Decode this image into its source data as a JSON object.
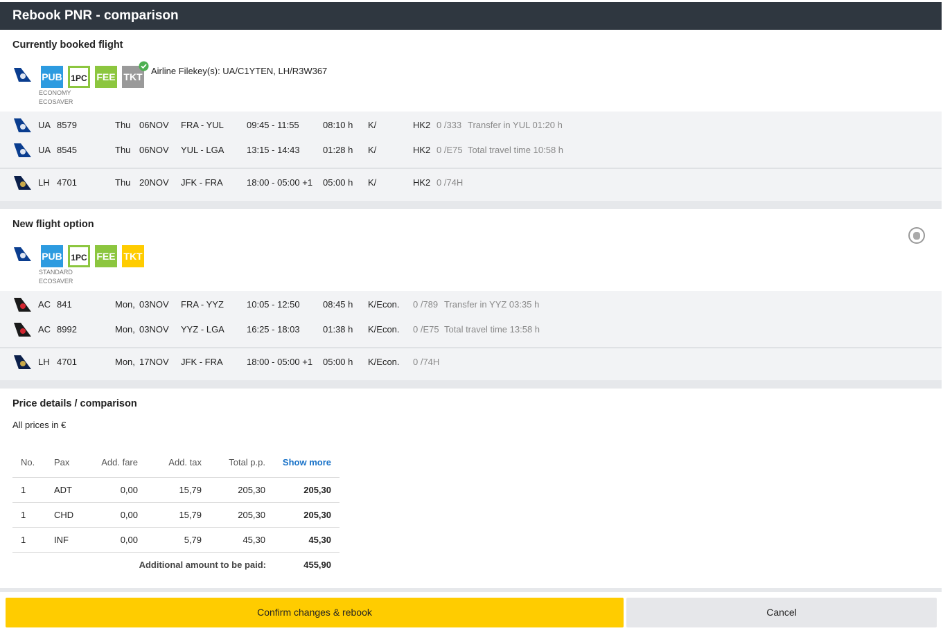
{
  "header": {
    "title": "Rebook PNR - comparison"
  },
  "current": {
    "title": "Currently booked flight",
    "badges": [
      "PUB",
      "1PC",
      "FEE",
      "TKT"
    ],
    "fare": [
      "ECONOMY",
      "ECOSAVER"
    ],
    "filekeys": "Airline Filekey(s): UA/C1YTEN, LH/R3W367",
    "groups": [
      [
        {
          "airline": "UA",
          "flight": "8579",
          "day": "Thu",
          "date": "06NOV",
          "route": "FRA - YUL",
          "time": "09:45 - 11:55",
          "duration": "08:10 h",
          "class": "K/",
          "status": "HK2",
          "seats": "0 /333",
          "note": "Transfer in YUL 01:20 h"
        },
        {
          "airline": "UA",
          "flight": "8545",
          "day": "Thu",
          "date": "06NOV",
          "route": "YUL - LGA",
          "time": "13:15 - 14:43",
          "duration": "01:28 h",
          "class": "K/",
          "status": "HK2",
          "seats": "0 /E75",
          "note": "Total travel time 10:58 h"
        }
      ],
      [
        {
          "airline": "LH",
          "flight": "4701",
          "day": "Thu",
          "date": "20NOV",
          "route": "JFK - FRA",
          "time": "18:00 - 05:00 +1",
          "duration": "05:00 h",
          "class": "K/",
          "status": "HK2",
          "seats": "0 /74H"
        }
      ]
    ]
  },
  "option": {
    "title": "New flight option",
    "badges": [
      "PUB",
      "1PC",
      "FEE",
      "TKT"
    ],
    "fare": [
      "STANDARD",
      "ECOSAVER"
    ],
    "groups": [
      [
        {
          "airline": "AC",
          "flight": "841",
          "day": "Mon,",
          "date": "03NOV",
          "route": "FRA - YYZ",
          "time": "10:05 - 12:50",
          "duration": "08:45 h",
          "class": "K/Econ.",
          "seats": "0 /789",
          "note": "Transfer in YYZ 03:35 h"
        },
        {
          "airline": "AC",
          "flight": "8992",
          "day": "Mon,",
          "date": "03NOV",
          "route": "YYZ - LGA",
          "time": "16:25 - 18:03",
          "duration": "01:38 h",
          "class": "K/Econ.",
          "seats": "0 /E75",
          "note": "Total travel time 13:58 h"
        }
      ],
      [
        {
          "airline": "LH",
          "flight": "4701",
          "day": "Mon,",
          "date": "17NOV",
          "route": "JFK - FRA",
          "time": "18:00 - 05:00 +1",
          "duration": "05:00 h",
          "class": "K/Econ.",
          "seats": "0 /74H"
        }
      ]
    ]
  },
  "price": {
    "title": "Price details / comparison",
    "note": "All prices in €",
    "columns": [
      "No.",
      "Pax",
      "Add. fare",
      "Add. tax",
      "Total p.p.",
      "Show more"
    ],
    "rows": [
      [
        "1",
        "ADT",
        "0,00",
        "15,79",
        "205,30",
        "205,30"
      ],
      [
        "1",
        "CHD",
        "0,00",
        "15,79",
        "205,30",
        "205,30"
      ],
      [
        "1",
        "INF",
        "0,00",
        "5,79",
        "45,30",
        "45,30"
      ]
    ],
    "total_label": "Additional amount to be paid:",
    "total": "455,90"
  },
  "actions": {
    "confirm": "Confirm changes & rebook",
    "cancel": "Cancel"
  }
}
